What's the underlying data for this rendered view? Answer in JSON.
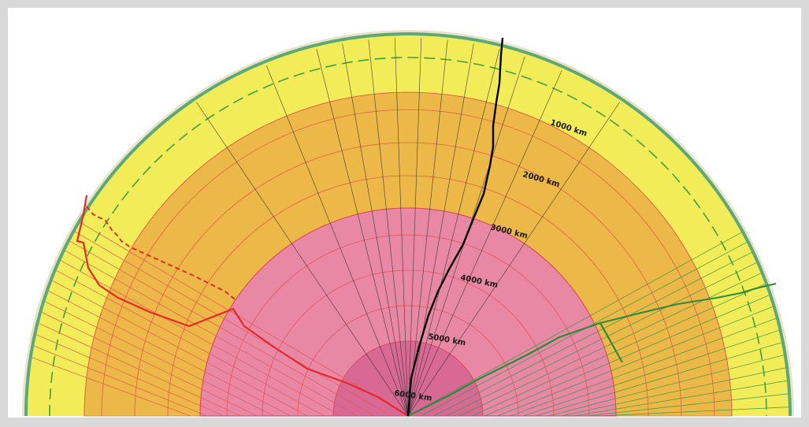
{
  "depth_labels": [
    "1000 km",
    "2000 km",
    "3000 km",
    "4000 km",
    "5000 km",
    "6000 km"
  ],
  "colors": {
    "page_bg": "#d9d9d9",
    "paper": "#ffffff",
    "crust_mantle_upper": "#f2ec58",
    "lower_mantle": "#ecb847",
    "outer_core": "#e888a4",
    "inner_core": "#d86894",
    "p_wave_path": "#000000",
    "s_wave_path": "#e82828",
    "green_wave_path": "#2e8a3c"
  },
  "icons": {
    "hemisphere": "earth-cross-section-icon"
  }
}
